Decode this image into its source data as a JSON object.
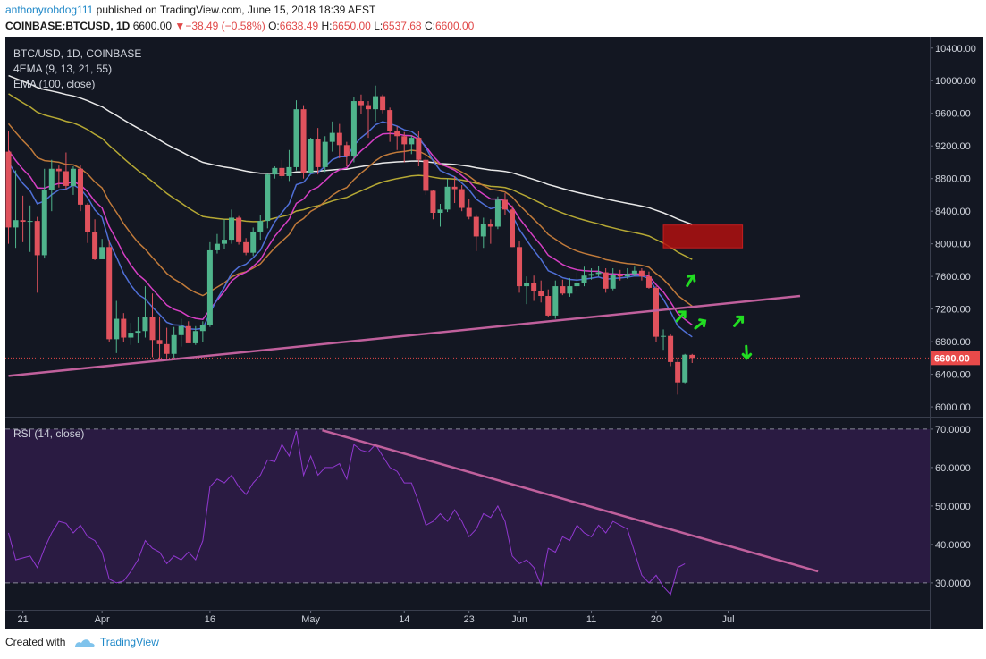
{
  "header": {
    "user": "anthonyrobdog111",
    "published": "published on TradingView.com, June 15, 2018 18:39 AEST",
    "symbol_line": "COINBASE:BTCUSD, 1D",
    "last": "6600.00",
    "change": "−38.49 (−0.58%)",
    "o_label": "O:",
    "o_value": "6638.49",
    "h_label": "H:",
    "h_value": "6650.00",
    "l_label": "L:",
    "l_value": "6537.68",
    "c_label": "C:",
    "c_value": "6600.00"
  },
  "legend": {
    "title": "BTC/USD, 1D, COINBASE",
    "ema_multi": "4EMA (9, 13, 21, 55)",
    "ema_single": "EMA (100, close)"
  },
  "rsi_legend": "RSI (14, close)",
  "footer": {
    "created": "Created with",
    "brand": "TradingView"
  },
  "colors": {
    "background": "#131722",
    "rsi_band": "#2a1b42",
    "up": "#4fb48c",
    "down": "#e0525d",
    "ema9": "#4f6fd6",
    "ema13": "#d63fc4",
    "ema21": "#c07a3a",
    "ema55": "#b5a834",
    "ema100": "#e8e8e8",
    "trendline": "#c0609c",
    "rsi_line": "#9138d0",
    "target_box": "#b01010",
    "arrows": "#22dd22",
    "last_price": "#e84a4a"
  },
  "chart_data": [
    {
      "type": "candlestick",
      "title": "BTC/USD, 1D, COINBASE",
      "x_axis": {
        "labels": [
          "21",
          "Apr",
          "16",
          "May",
          "14",
          "23",
          "Jun",
          "11",
          "20",
          "Jul"
        ],
        "label_index": [
          2,
          13,
          28,
          42,
          55,
          64,
          71,
          81,
          90,
          100
        ]
      },
      "y_axis": {
        "ticks": [
          6000,
          6400,
          6800,
          7200,
          7600,
          8000,
          8400,
          8800,
          9200,
          9600,
          10000,
          10400
        ],
        "tick_labels": [
          "6000.00",
          "6400.00",
          "6800.00",
          "7200.00",
          "7600.00",
          "8000.00",
          "8400.00",
          "8800.00",
          "9200.00",
          "9600.00",
          "10000.00",
          "10400.00"
        ],
        "range": [
          5880,
          10540
        ]
      },
      "last_price": 6600,
      "last_price_label": "6600.00",
      "first_date": "2018-03-15",
      "ohlc": [
        [
          9130,
          9380,
          8000,
          8200
        ],
        [
          8200,
          8900,
          7950,
          8290
        ],
        [
          8290,
          8590,
          8020,
          8270
        ],
        [
          8270,
          8470,
          7900,
          8280
        ],
        [
          8280,
          8330,
          7400,
          7860
        ],
        [
          7860,
          8920,
          7820,
          8660
        ],
        [
          8660,
          9030,
          8400,
          8920
        ],
        [
          8920,
          8960,
          8690,
          8890
        ],
        [
          8890,
          9120,
          8670,
          8710
        ],
        [
          8710,
          8950,
          8600,
          8920
        ],
        [
          8920,
          8970,
          8400,
          8480
        ],
        [
          8480,
          8500,
          8010,
          8140
        ],
        [
          8140,
          8300,
          7800,
          7810
        ],
        [
          7810,
          8060,
          7840,
          7960
        ],
        [
          7960,
          8050,
          6800,
          6830
        ],
        [
          6830,
          7300,
          6660,
          7080
        ],
        [
          7080,
          7150,
          6800,
          6850
        ],
        [
          6850,
          7030,
          6760,
          6910
        ],
        [
          6910,
          7100,
          6780,
          6930
        ],
        [
          6930,
          7480,
          6850,
          7100
        ],
        [
          7100,
          7390,
          6610,
          6820
        ],
        [
          6820,
          7110,
          6580,
          6770
        ],
        [
          6770,
          6970,
          6600,
          6650
        ],
        [
          6650,
          6980,
          6600,
          6880
        ],
        [
          6880,
          7080,
          6740,
          6990
        ],
        [
          6990,
          7050,
          6800,
          6780
        ],
        [
          6780,
          6990,
          6760,
          6930
        ],
        [
          6930,
          7050,
          6800,
          7000
        ],
        [
          7000,
          8020,
          6980,
          7920
        ],
        [
          7920,
          8120,
          7880,
          8000
        ],
        [
          8000,
          8300,
          7930,
          8050
        ],
        [
          8050,
          8420,
          8000,
          8320
        ],
        [
          8320,
          8340,
          7990,
          8020
        ],
        [
          8020,
          8070,
          7860,
          7890
        ],
        [
          7890,
          8200,
          7850,
          8150
        ],
        [
          8150,
          8350,
          8050,
          8280
        ],
        [
          8280,
          8860,
          8190,
          8850
        ],
        [
          8850,
          8950,
          8800,
          8930
        ],
        [
          8930,
          9030,
          8800,
          8830
        ],
        [
          8830,
          9150,
          8770,
          8940
        ],
        [
          8940,
          9760,
          8900,
          9650
        ],
        [
          9650,
          9700,
          8800,
          8870
        ],
        [
          8870,
          9300,
          8860,
          9280
        ],
        [
          9280,
          9420,
          8850,
          8940
        ],
        [
          8940,
          9320,
          8880,
          9250
        ],
        [
          9250,
          9500,
          9130,
          9360
        ],
        [
          9360,
          9470,
          9050,
          9210
        ],
        [
          9210,
          9250,
          8950,
          9070
        ],
        [
          9070,
          9800,
          9000,
          9750
        ],
        [
          9750,
          9830,
          9590,
          9700
        ],
        [
          9700,
          9750,
          9300,
          9650
        ],
        [
          9650,
          9940,
          9500,
          9810
        ],
        [
          9810,
          9830,
          9600,
          9640
        ],
        [
          9640,
          9670,
          9250,
          9380
        ],
        [
          9380,
          9440,
          9150,
          9320
        ],
        [
          9320,
          9370,
          9000,
          9220
        ],
        [
          9220,
          9330,
          9100,
          9300
        ],
        [
          9300,
          9380,
          8950,
          9030
        ],
        [
          9030,
          9130,
          8600,
          8650
        ],
        [
          8650,
          8660,
          8300,
          8380
        ],
        [
          8380,
          8490,
          8210,
          8420
        ],
        [
          8420,
          8800,
          8390,
          8700
        ],
        [
          8700,
          8830,
          8500,
          8670
        ],
        [
          8670,
          8720,
          8400,
          8440
        ],
        [
          8440,
          8550,
          8300,
          8330
        ],
        [
          8330,
          8360,
          7910,
          8090
        ],
        [
          8090,
          8320,
          7950,
          8240
        ],
        [
          8240,
          8300,
          8000,
          8210
        ],
        [
          8210,
          8580,
          8180,
          8540
        ],
        [
          8540,
          8620,
          8350,
          8420
        ],
        [
          8420,
          8470,
          7960,
          7960
        ],
        [
          7960,
          8040,
          7400,
          7480
        ],
        [
          7480,
          7600,
          7260,
          7520
        ],
        [
          7520,
          7610,
          7300,
          7420
        ],
        [
          7420,
          7550,
          7280,
          7360
        ],
        [
          7360,
          7440,
          7100,
          7120
        ],
        [
          7120,
          7550,
          7080,
          7480
        ],
        [
          7480,
          7560,
          7370,
          7390
        ],
        [
          7390,
          7580,
          7350,
          7480
        ],
        [
          7480,
          7650,
          7420,
          7520
        ],
        [
          7520,
          7720,
          7480,
          7610
        ],
        [
          7610,
          7700,
          7560,
          7630
        ],
        [
          7630,
          7730,
          7600,
          7650
        ],
        [
          7650,
          7700,
          7400,
          7450
        ],
        [
          7450,
          7700,
          7430,
          7620
        ],
        [
          7620,
          7680,
          7550,
          7600
        ],
        [
          7600,
          7700,
          7570,
          7630
        ],
        [
          7630,
          7720,
          7600,
          7670
        ],
        [
          7670,
          7700,
          7550,
          7600
        ],
        [
          7600,
          7660,
          7450,
          7460
        ],
        [
          7460,
          7480,
          6800,
          6860
        ],
        [
          6860,
          6950,
          6700,
          6870
        ],
        [
          6870,
          6900,
          6500,
          6550
        ],
        [
          6550,
          6600,
          6150,
          6300
        ],
        [
          6300,
          6650,
          6290,
          6640
        ],
        [
          6638,
          6650,
          6538,
          6600
        ]
      ],
      "trendlines": [
        {
          "name": "support",
          "from": [
            0,
            6380
          ],
          "to": [
            110,
            7360
          ]
        }
      ],
      "target_zone": {
        "x_range": [
          91,
          102
        ],
        "y_range": [
          7950,
          8230
        ]
      }
    },
    {
      "type": "line",
      "title": "RSI (14, close)",
      "y_axis": {
        "ticks": [
          30,
          40,
          50,
          60,
          70
        ],
        "tick_labels": [
          "30.0000",
          "40.0000",
          "50.0000",
          "60.0000",
          "70.0000"
        ],
        "range": [
          23,
          73
        ]
      },
      "band": [
        30,
        70
      ],
      "values": [
        43,
        36,
        36.5,
        37,
        34,
        39,
        43,
        46,
        45.5,
        43,
        45,
        42,
        41,
        38,
        31,
        30,
        30.5,
        33,
        36,
        41,
        39,
        38,
        35,
        37,
        36,
        38,
        36,
        41,
        55,
        57,
        56,
        58,
        55,
        53,
        56,
        58,
        62,
        61.5,
        66,
        63,
        69.5,
        58,
        63,
        58,
        60,
        60,
        61,
        57,
        66,
        64.5,
        64,
        66,
        63,
        60,
        59,
        56,
        56,
        51,
        45,
        46,
        48,
        46,
        49,
        46,
        42,
        44,
        48,
        47,
        50,
        46,
        37,
        35,
        36,
        34,
        29.5,
        39,
        38,
        42,
        41,
        45,
        43,
        42,
        45,
        43,
        46,
        45,
        44,
        38,
        32,
        30,
        32,
        29,
        27,
        34,
        35
      ]
    }
  ]
}
